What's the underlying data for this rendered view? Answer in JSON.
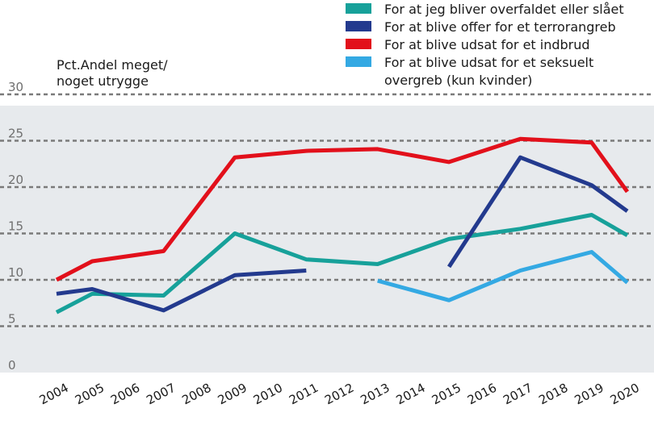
{
  "chart_data": {
    "type": "line",
    "ylabel_lines": [
      "Pct.Andel meget/",
      "noget utrygge"
    ],
    "ylim": [
      0,
      30
    ],
    "yticks": [
      0,
      5,
      10,
      15,
      20,
      25,
      30
    ],
    "grid": true,
    "legend_position": "top-right",
    "x_ticks": [
      "2004",
      "2005",
      "2006",
      "2007",
      "2008",
      "2009",
      "2010",
      "2011",
      "2012",
      "2013",
      "2014",
      "2015",
      "2016",
      "2017",
      "2018",
      "2019",
      "2020"
    ],
    "series": [
      {
        "name": "For at jeg bliver overfaldet eller slået",
        "color": "#17a19a",
        "x": [
          2004,
          2005,
          2007,
          2009,
          2011,
          2013,
          2015,
          2017,
          2019,
          2020
        ],
        "values": [
          6.5,
          8.5,
          8.3,
          15.0,
          12.2,
          11.7,
          14.4,
          15.5,
          17.0,
          14.8
        ]
      },
      {
        "name": "For at blive offer for et terrorangreb",
        "color": "#233a8e",
        "x": [
          2004,
          2005,
          2007,
          2009,
          2011,
          null,
          2015,
          2017,
          2019,
          2020
        ],
        "values": [
          8.5,
          9.0,
          6.7,
          10.5,
          11.0,
          null,
          11.4,
          23.2,
          20.2,
          17.4
        ]
      },
      {
        "name": "For at blive udsat for et indbrud",
        "color": "#e2101b",
        "x": [
          2004,
          2005,
          2007,
          2009,
          2011,
          2013,
          2015,
          2017,
          2019,
          2020
        ],
        "values": [
          10.0,
          12.0,
          13.1,
          23.2,
          23.9,
          24.1,
          22.7,
          25.2,
          24.8,
          19.5
        ]
      },
      {
        "name_lines": [
          "For at blive udsat for et seksuelt",
          "overgreb (kun kvinder)"
        ],
        "color": "#34a9e3",
        "x": [
          2013,
          2015,
          2017,
          2019,
          2020
        ],
        "values": [
          9.9,
          7.8,
          11.0,
          13.0,
          9.7
        ]
      }
    ]
  }
}
